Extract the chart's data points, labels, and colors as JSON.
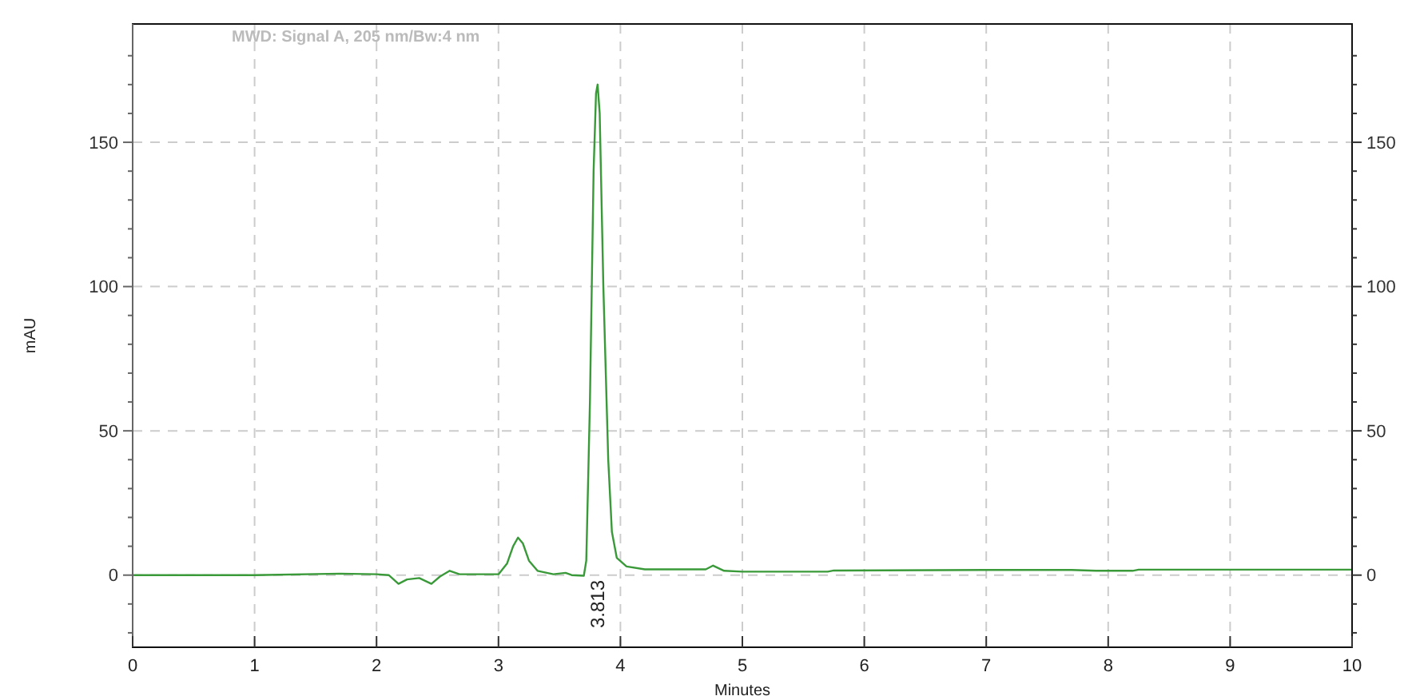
{
  "chart_data": {
    "type": "line",
    "title": "MWD: Signal A, 205 nm/Bw:4 nm",
    "xlabel": "Minutes",
    "ylabel": "mAU",
    "x": [
      0,
      1,
      1.7,
      2.0,
      2.1,
      2.18,
      2.25,
      2.35,
      2.45,
      2.52,
      2.6,
      2.68,
      3.0,
      3.07,
      3.12,
      3.16,
      3.2,
      3.25,
      3.32,
      3.45,
      3.55,
      3.6,
      3.7,
      3.72,
      3.75,
      3.78,
      3.8,
      3.813,
      3.83,
      3.86,
      3.9,
      3.93,
      3.97,
      4.05,
      4.2,
      4.7,
      4.76,
      4.85,
      5.0,
      5.7,
      5.75,
      7.0,
      7.7,
      7.9,
      8.2,
      8.25,
      10
    ],
    "series": [
      {
        "color": "#3a9a3a",
        "values": [
          0,
          0,
          0.5,
          0.3,
          0,
          -3,
          -1.5,
          -1,
          -3,
          -0.5,
          1.5,
          0.3,
          0.3,
          4,
          10,
          13,
          11,
          5,
          1.5,
          0.3,
          0.8,
          0,
          -0.2,
          5,
          60,
          140,
          167,
          170,
          160,
          100,
          40,
          15,
          6,
          3,
          2,
          2,
          3.3,
          1.5,
          1.2,
          1.2,
          1.6,
          1.8,
          1.8,
          1.5,
          1.5,
          1.9,
          1.9
        ]
      }
    ],
    "annotations": [
      "3.813"
    ],
    "xlim": [
      0,
      10
    ],
    "xticks": [
      0,
      1,
      2,
      3,
      4,
      5,
      6,
      7,
      8,
      9,
      10
    ],
    "ylim": [
      -25,
      191
    ],
    "yticks": [
      {
        "value": -20,
        "label": null
      },
      {
        "value": -10,
        "label": null
      },
      0,
      {
        "value": 10,
        "label": null
      },
      {
        "value": 20,
        "label": null
      },
      {
        "value": 30,
        "label": null
      },
      {
        "value": 40,
        "label": null
      },
      50,
      {
        "value": 60,
        "label": null
      },
      {
        "value": 70,
        "label": null
      },
      {
        "value": 80,
        "label": null
      },
      {
        "value": 90,
        "label": null
      },
      100,
      {
        "value": 110,
        "label": null
      },
      {
        "value": 120,
        "label": null
      },
      {
        "value": 130,
        "label": null
      },
      {
        "value": 140,
        "label": null
      },
      150,
      {
        "value": 160,
        "label": null
      },
      {
        "value": 170,
        "label": null
      },
      {
        "value": 180,
        "label": null
      }
    ],
    "y2lim": [
      -25,
      191
    ],
    "y2ticks": [
      {
        "value": -20,
        "label": null
      },
      {
        "value": -10,
        "label": null
      },
      0,
      {
        "value": 10,
        "label": null
      },
      {
        "value": 20,
        "label": null
      },
      {
        "value": 30,
        "label": null
      },
      {
        "value": 40,
        "label": null
      },
      50,
      {
        "value": 60,
        "label": null
      },
      {
        "value": 70,
        "label": null
      },
      {
        "value": 80,
        "label": null
      },
      {
        "value": 90,
        "label": null
      },
      100,
      {
        "value": 110,
        "label": null
      },
      {
        "value": 120,
        "label": null
      },
      {
        "value": 130,
        "label": null
      },
      {
        "value": 140,
        "label": null
      },
      150,
      {
        "value": 160,
        "label": null
      },
      {
        "value": 170,
        "label": null
      },
      {
        "value": 180,
        "label": null
      }
    ],
    "grid": true,
    "line_style": "solid"
  }
}
